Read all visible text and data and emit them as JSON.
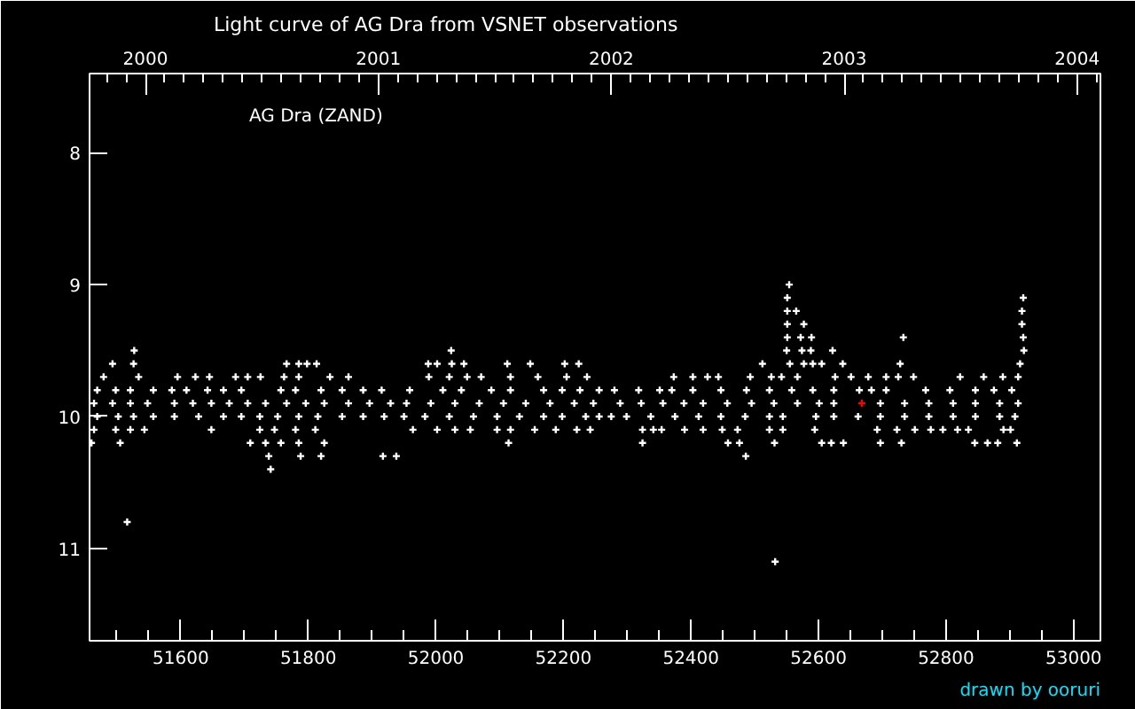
{
  "chart_data": {
    "type": "scatter",
    "title": "Light curve of AG Dra from VSNET observations",
    "annotations": [
      "AG Dra (ZAND)",
      "drawn by ooruri"
    ],
    "marker": "cross",
    "grid": false,
    "xlim": [
      51457,
      53042
    ],
    "xticks": [
      51600,
      51800,
      52000,
      52200,
      52400,
      52600,
      52800,
      53000
    ],
    "x2lim": [
      1999.76,
      2004.1
    ],
    "x2ticks": [
      2000,
      2001,
      2002,
      2003,
      2004
    ],
    "ylim": [
      11.7,
      7.4
    ],
    "yticks": [
      8,
      9,
      10,
      11
    ],
    "series": [
      {
        "color": "#ffffff",
        "x": [
          51527,
          52024,
          51493,
          51526,
          51766,
          51785,
          51798,
          51813,
          51988,
          52002,
          52025,
          52044,
          52112,
          52148,
          52202,
          52224,
          51479,
          51534,
          51595,
          51623,
          51645,
          51686,
          51705,
          51725,
          51762,
          51785,
          51834,
          51863,
          51989,
          52021,
          52049,
          52071,
          52117,
          52160,
          52205,
          52237,
          51469,
          51498,
          51521,
          51557,
          51586,
          51609,
          51642,
          51667,
          51695,
          51757,
          51780,
          51820,
          51853,
          51886,
          51915,
          51959,
          52011,
          52040,
          52087,
          52117,
          52169,
          52198,
          52226,
          52256,
          51464,
          51493,
          51521,
          51548,
          51590,
          51619,
          51648,
          51676,
          51705,
          51733,
          51766,
          51796,
          51825,
          51863,
          51896,
          51929,
          51954,
          51992,
          52030,
          52068,
          52106,
          52141,
          52179,
          52217,
          52247,
          51469,
          51502,
          51526,
          51557,
          51590,
          51628,
          51667,
          51695,
          51724,
          51752,
          51785,
          51815,
          51853,
          51886,
          51919,
          51950,
          51983,
          52021,
          52059,
          52096,
          52131,
          52169,
          52198,
          52235,
          52256,
          51464,
          51498,
          51521,
          51543,
          51648,
          51724,
          51747,
          51780,
          51811,
          51964,
          52002,
          52030,
          52054,
          52096,
          52117,
          52155,
          52188,
          52221,
          52242,
          51460,
          51505,
          51709,
          51733,
          51757,
          51785,
          51825,
          52114,
          51738,
          51788,
          51820,
          51917,
          51938,
          51741,
          51516,
          52554,
          52551,
          52921,
          52551,
          52565,
          52919,
          52551,
          52577,
          52919,
          52551,
          52572,
          52589,
          52733,
          52921,
          52550,
          52574,
          52588,
          52622,
          52922,
          52512,
          52555,
          52577,
          52591,
          52605,
          52638,
          52728,
          52916,
          52373,
          52403,
          52426,
          52443,
          52493,
          52526,
          52542,
          52567,
          52626,
          52651,
          52678,
          52706,
          52725,
          52749,
          52822,
          52859,
          52889,
          52913,
          52280,
          52318,
          52351,
          52370,
          52403,
          52447,
          52487,
          52523,
          52558,
          52591,
          52624,
          52664,
          52683,
          52706,
          52768,
          52806,
          52846,
          52875,
          52903,
          52289,
          52322,
          52356,
          52389,
          52419,
          52457,
          52495,
          52530,
          52567,
          52601,
          52624,
          52697,
          52735,
          52773,
          52811,
          52846,
          52884,
          52913,
          52275,
          52299,
          52337,
          52375,
          52412,
          52447,
          52485,
          52523,
          52544,
          52596,
          52624,
          52662,
          52697,
          52735,
          52773,
          52811,
          52846,
          52884,
          52908,
          52324,
          52341,
          52354,
          52390,
          52419,
          52449,
          52473,
          52523,
          52544,
          52594,
          52692,
          52723,
          52751,
          52776,
          52795,
          52818,
          52835,
          52890,
          52901,
          52324,
          52458,
          52476,
          52531,
          52605,
          52620,
          52639,
          52697,
          52730,
          52845,
          52865,
          52881,
          52911,
          52486,
          52532
        ],
        "values": [
          9.5,
          9.5,
          9.6,
          9.6,
          9.6,
          9.6,
          9.6,
          9.6,
          9.6,
          9.6,
          9.6,
          9.6,
          9.6,
          9.6,
          9.6,
          9.6,
          9.7,
          9.7,
          9.7,
          9.7,
          9.7,
          9.7,
          9.7,
          9.7,
          9.7,
          9.7,
          9.7,
          9.7,
          9.7,
          9.7,
          9.7,
          9.7,
          9.7,
          9.7,
          9.7,
          9.7,
          9.8,
          9.8,
          9.8,
          9.8,
          9.8,
          9.8,
          9.8,
          9.8,
          9.8,
          9.8,
          9.8,
          9.8,
          9.8,
          9.8,
          9.8,
          9.8,
          9.8,
          9.8,
          9.8,
          9.8,
          9.8,
          9.8,
          9.8,
          9.8,
          9.9,
          9.9,
          9.9,
          9.9,
          9.9,
          9.9,
          9.9,
          9.9,
          9.9,
          9.9,
          9.9,
          9.9,
          9.9,
          9.9,
          9.9,
          9.9,
          9.9,
          9.9,
          9.9,
          9.9,
          9.9,
          9.9,
          9.9,
          9.9,
          9.9,
          10.0,
          10.0,
          10.0,
          10.0,
          10.0,
          10.0,
          10.0,
          10.0,
          10.0,
          10.0,
          10.0,
          10.0,
          10.0,
          10.0,
          10.0,
          10.0,
          10.0,
          10.0,
          10.0,
          10.0,
          10.0,
          10.0,
          10.0,
          10.0,
          10.0,
          10.1,
          10.1,
          10.1,
          10.1,
          10.1,
          10.1,
          10.1,
          10.1,
          10.1,
          10.1,
          10.1,
          10.1,
          10.1,
          10.1,
          10.1,
          10.1,
          10.1,
          10.1,
          10.1,
          10.2,
          10.2,
          10.2,
          10.2,
          10.2,
          10.2,
          10.2,
          10.2,
          10.3,
          10.3,
          10.3,
          10.3,
          10.3,
          10.4,
          10.8,
          9.0,
          9.1,
          9.1,
          9.2,
          9.2,
          9.2,
          9.3,
          9.3,
          9.3,
          9.4,
          9.4,
          9.4,
          9.4,
          9.4,
          9.5,
          9.5,
          9.5,
          9.5,
          9.5,
          9.6,
          9.6,
          9.6,
          9.6,
          9.6,
          9.6,
          9.6,
          9.6,
          9.7,
          9.7,
          9.7,
          9.7,
          9.7,
          9.7,
          9.7,
          9.7,
          9.7,
          9.7,
          9.7,
          9.7,
          9.7,
          9.7,
          9.7,
          9.7,
          9.7,
          9.7,
          9.8,
          9.8,
          9.8,
          9.8,
          9.8,
          9.8,
          9.8,
          9.8,
          9.8,
          9.8,
          9.8,
          9.8,
          9.8,
          9.8,
          9.8,
          9.8,
          9.8,
          9.8,
          9.8,
          9.9,
          9.9,
          9.9,
          9.9,
          9.9,
          9.9,
          9.9,
          9.9,
          9.9,
          9.9,
          9.9,
          9.9,
          9.9,
          9.9,
          9.9,
          9.9,
          9.9,
          9.9,
          10.0,
          10.0,
          10.0,
          10.0,
          10.0,
          10.0,
          10.0,
          10.0,
          10.0,
          10.0,
          10.0,
          10.0,
          10.0,
          10.0,
          10.0,
          10.0,
          10.0,
          10.0,
          10.0,
          10.1,
          10.1,
          10.1,
          10.1,
          10.1,
          10.1,
          10.1,
          10.1,
          10.1,
          10.1,
          10.1,
          10.1,
          10.1,
          10.1,
          10.1,
          10.1,
          10.1,
          10.1,
          10.1,
          10.2,
          10.2,
          10.2,
          10.2,
          10.2,
          10.2,
          10.2,
          10.2,
          10.2,
          10.2,
          10.2,
          10.2,
          10.2,
          10.3,
          11.1
        ]
      },
      {
        "color": "#ff0000",
        "x": [
          52668
        ],
        "values": [
          9.9
        ]
      }
    ]
  }
}
